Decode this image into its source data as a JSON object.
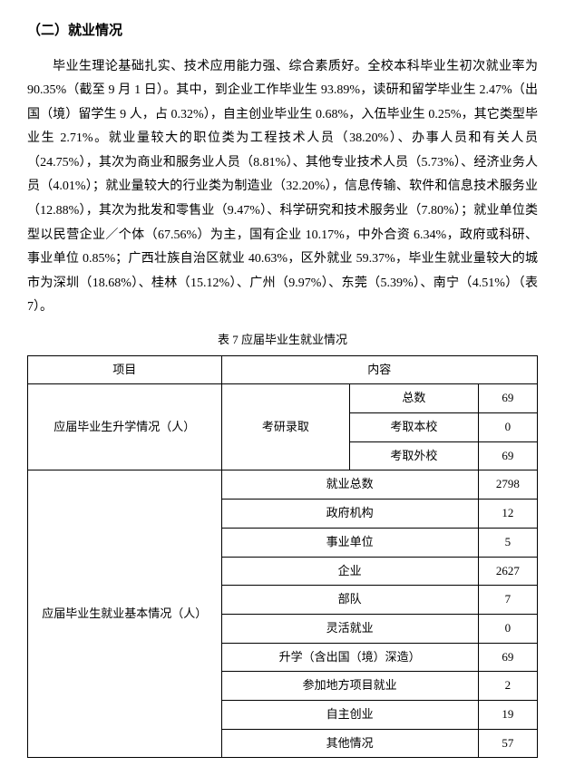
{
  "section": {
    "title": "（二）就业情况",
    "paragraph": "毕业生理论基础扎实、技术应用能力强、综合素质好。全校本科毕业生初次就业率为 90.35%（截至 9 月 1 日）。其中，到企业工作毕业生 93.89%，读研和留学毕业生 2.47%（出国（境）留学生 9 人，占 0.32%），自主创业毕业生 0.68%，入伍毕业生 0.25%，其它类型毕业生 2.71%。就业量较大的职位类为工程技术人员（38.20%）、办事人员和有关人员（24.75%），其次为商业和服务业人员（8.81%）、其他专业技术人员（5.73%）、经济业务人员（4.01%）；就业量较大的行业类为制造业（32.20%），信息传输、软件和信息技术服务业（12.88%），其次为批发和零售业（9.47%）、科学研究和技术服务业（7.80%）；就业单位类型以民营企业／个体（67.56%）为主，国有企业 10.17%，中外合资 6.34%，政府或科研、事业单位 0.85%；广西壮族自治区就业 40.63%，区外就业 59.37%，毕业生就业量较大的城市为深圳（18.68%）、桂林（15.12%）、广州（9.97%）、东莞（5.39%）、南宁（4.51%）（表 7）。"
  },
  "table": {
    "caption": "表 7 应届毕业生就业情况",
    "header": {
      "col1": "项目",
      "col2": "内容"
    },
    "rows": {
      "cat1": "应届毕业生升学情况（人）",
      "cat1_sub": "考研录取",
      "cat1_item1": "总数",
      "cat1_val1": "69",
      "cat1_item2": "考取本校",
      "cat1_val2": "0",
      "cat1_item3": "考取外校",
      "cat1_val3": "69",
      "cat2": "应届毕业生就业基本情况（人）",
      "cat2_item1": "就业总数",
      "cat2_val1": "2798",
      "cat2_item2": "政府机构",
      "cat2_val2": "12",
      "cat2_item3": "事业单位",
      "cat2_val3": "5",
      "cat2_item4": "企业",
      "cat2_val4": "2627",
      "cat2_item5": "部队",
      "cat2_val5": "7",
      "cat2_item6": "灵活就业",
      "cat2_val6": "0",
      "cat2_item7": "升学（含出国（境）深造）",
      "cat2_val7": "69",
      "cat2_item8": "参加地方项目就业",
      "cat2_val8": "2",
      "cat2_item9": "自主创业",
      "cat2_val9": "19",
      "cat2_item10": "其他情况",
      "cat2_val10": "57"
    }
  }
}
